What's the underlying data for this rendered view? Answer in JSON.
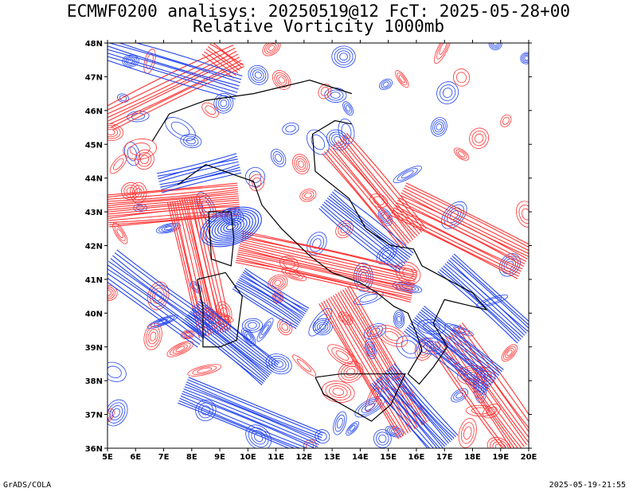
{
  "title": {
    "line1": "ECMWF0200 analisys: 20250519@12 FcT: 2025-05-28+00",
    "line2": "Relative Vorticity 1000mb"
  },
  "axes": {
    "lat_labels": [
      "36N",
      "37N",
      "38N",
      "39N",
      "40N",
      "41N",
      "42N",
      "43N",
      "44N",
      "45N",
      "46N",
      "47N",
      "48N"
    ],
    "lon_labels": [
      "5E",
      "6E",
      "7E",
      "8E",
      "9E",
      "10E",
      "11E",
      "12E",
      "13E",
      "14E",
      "15E",
      "16E",
      "17E",
      "18E",
      "19E",
      "20E"
    ],
    "lat_range": [
      36,
      48
    ],
    "lon_range": [
      5,
      20
    ]
  },
  "footer": {
    "left": "GrADS/COLA",
    "right": "2025-05-19-21:55"
  },
  "colors": {
    "positive_vorticity": "#ff3333",
    "negative_vorticity": "#2244ee",
    "coastline": "#000000"
  }
}
